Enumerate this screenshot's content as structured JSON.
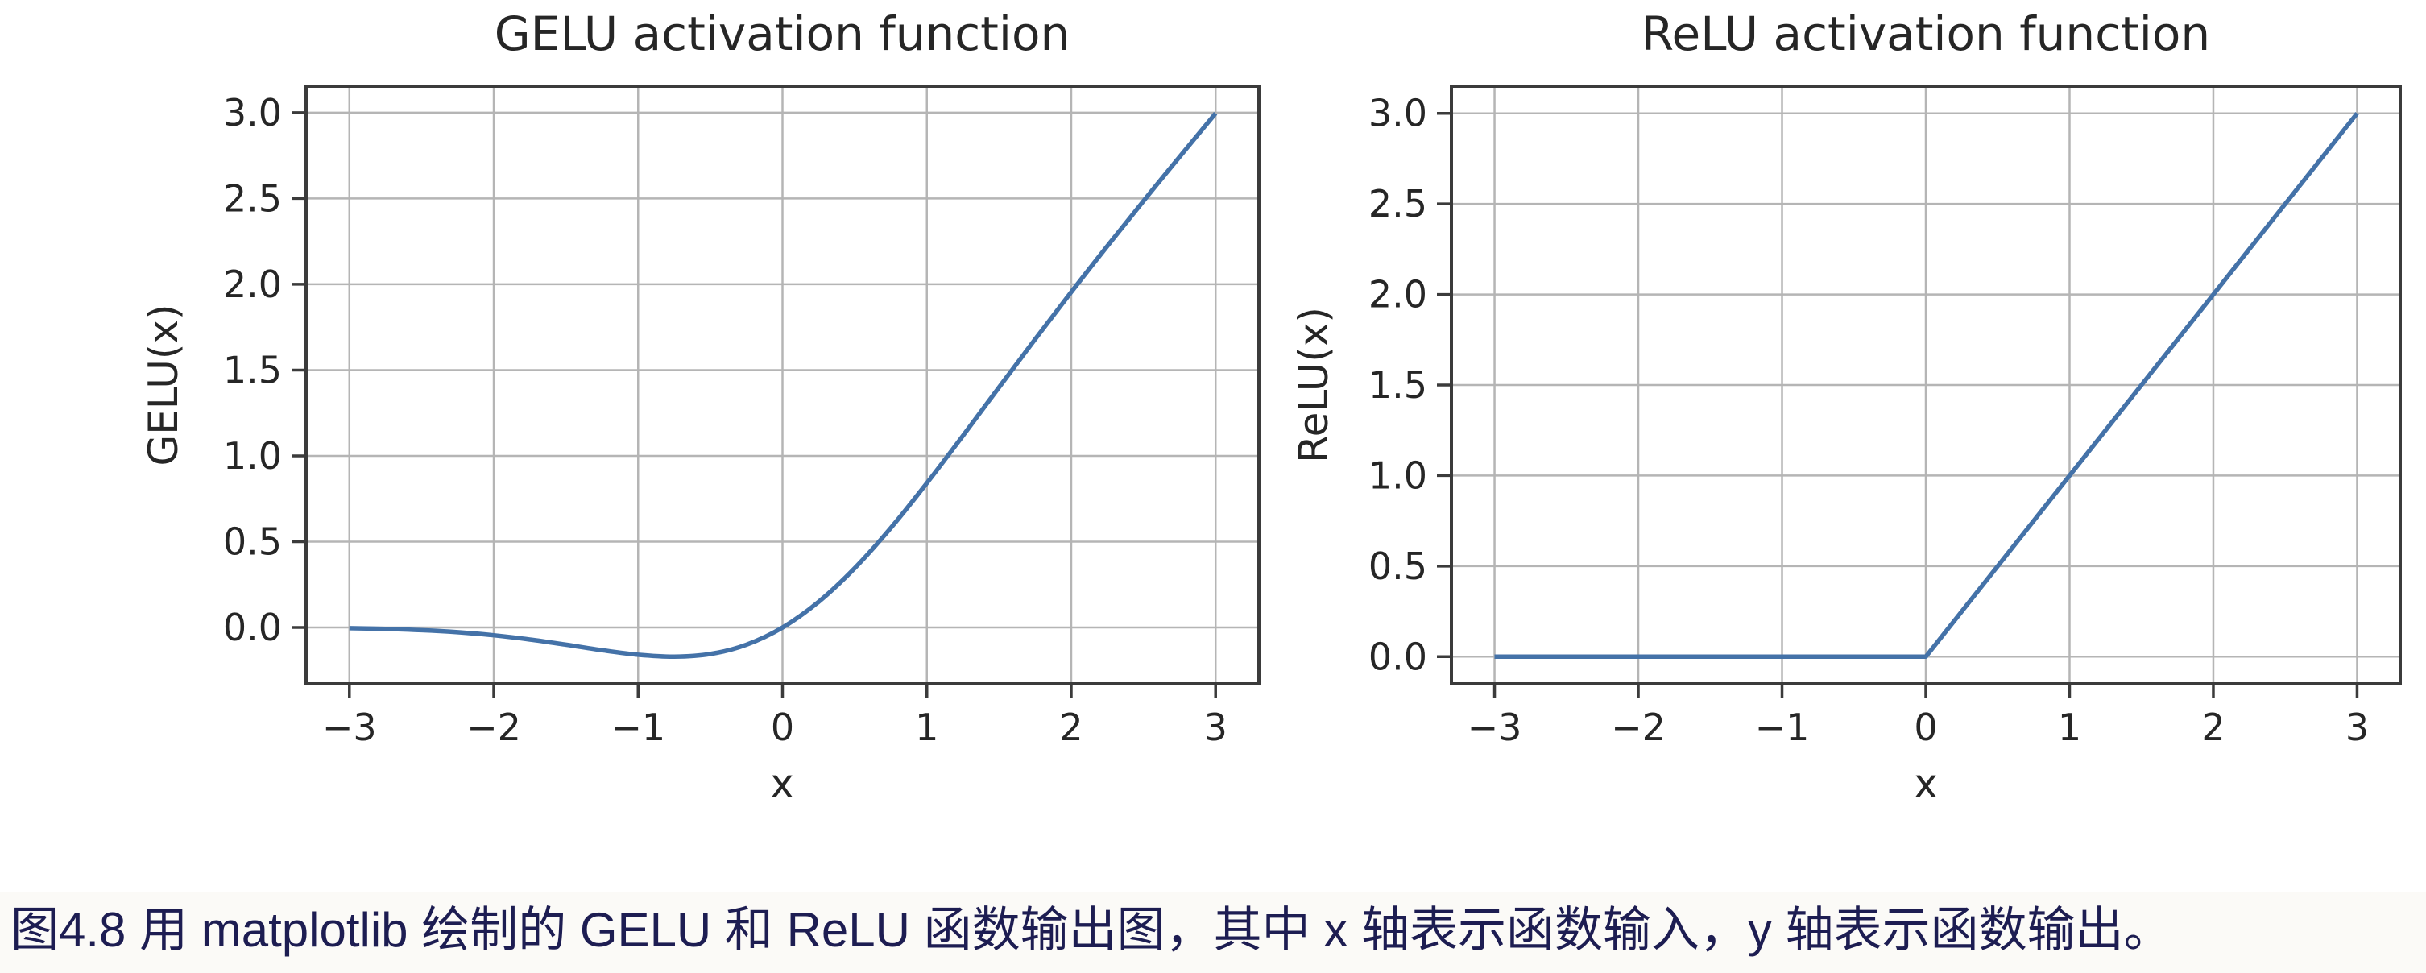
{
  "caption": {
    "text": "图4.8 用 matplotlib 绘制的 GELU 和 ReLU 函数输出图，其中 x 轴表示函数输入，y 轴表示函数输出。",
    "color": "#1d1d52"
  },
  "colors": {
    "line": "#4472a8",
    "grid": "#b5b5b5",
    "spine": "#3b3b3b",
    "tick_text": "#262626",
    "title_text": "#262626",
    "background": "#ffffff",
    "caption_strip": "#fbfaf7"
  },
  "chart_data": [
    {
      "type": "line",
      "title": "GELU activation function",
      "xlabel": "x",
      "ylabel": "GELU(x)",
      "xlim": [
        -3.3,
        3.3
      ],
      "ylim": [
        -0.3283,
        3.1542
      ],
      "xticks": [
        -3,
        -2,
        -1,
        0,
        1,
        2,
        3
      ],
      "xtick_labels": [
        "−3",
        "−2",
        "−1",
        "0",
        "1",
        "2",
        "3"
      ],
      "yticks": [
        0.0,
        0.5,
        1.0,
        1.5,
        2.0,
        2.5,
        3.0
      ],
      "ytick_labels": [
        "0.0",
        "0.5",
        "1.0",
        "1.5",
        "2.0",
        "2.5",
        "3.0"
      ],
      "grid": true,
      "legend": "none",
      "series": [
        {
          "name": "GELU",
          "interp": "smooth",
          "x": [
            -3,
            -2.75,
            -2.5,
            -2.25,
            -2,
            -1.75,
            -1.5,
            -1.25,
            -1,
            -0.75,
            -0.5,
            -0.25,
            0,
            0.25,
            0.5,
            0.75,
            1,
            1.25,
            1.5,
            1.75,
            2,
            2.25,
            2.5,
            2.75,
            3
          ],
          "y": [
            -0.0041,
            -0.0082,
            -0.0155,
            -0.0275,
            -0.0455,
            -0.0701,
            -0.1002,
            -0.1321,
            -0.1587,
            -0.17,
            -0.1543,
            -0.1003,
            0,
            0.1497,
            0.3457,
            0.58,
            0.8413,
            1.1179,
            1.3998,
            1.6799,
            1.9545,
            2.2225,
            2.4845,
            2.7418,
            2.996
          ]
        }
      ]
    },
    {
      "type": "line",
      "title": "ReLU activation function",
      "xlabel": "x",
      "ylabel": "ReLU(x)",
      "xlim": [
        -3.3,
        3.3
      ],
      "ylim": [
        -0.15,
        3.15
      ],
      "xticks": [
        -3,
        -2,
        -1,
        0,
        1,
        2,
        3
      ],
      "xtick_labels": [
        "−3",
        "−2",
        "−1",
        "0",
        "1",
        "2",
        "3"
      ],
      "yticks": [
        0.0,
        0.5,
        1.0,
        1.5,
        2.0,
        2.5,
        3.0
      ],
      "ytick_labels": [
        "0.0",
        "0.5",
        "1.0",
        "1.5",
        "2.0",
        "2.5",
        "3.0"
      ],
      "grid": true,
      "legend": "none",
      "series": [
        {
          "name": "ReLU",
          "interp": "linear",
          "x": [
            -3,
            0,
            3
          ],
          "y": [
            0,
            0,
            3
          ]
        }
      ]
    }
  ]
}
